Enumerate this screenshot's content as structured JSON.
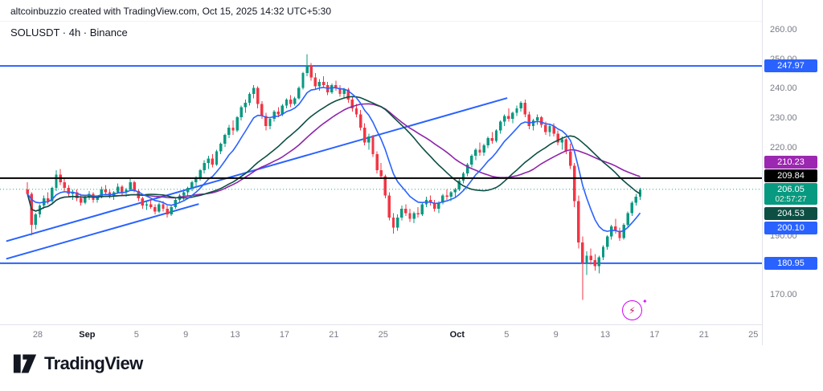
{
  "attribution": {
    "text": "altcoinbuzzio created with TradingView.com, Oct 15, 2025 14:32 UTC+5:30"
  },
  "legend": {
    "text": "SOLUSDT · 4h · Binance"
  },
  "logo": {
    "brand": "TradingView"
  },
  "flash_button": {
    "glyph": "⚡",
    "spark": "✦"
  },
  "price_axis": {
    "ticks": [
      {
        "label": "260.00",
        "value": 260,
        "visible": true
      },
      {
        "label": "250.00",
        "value": 250,
        "visible": true
      },
      {
        "label": "240.00",
        "value": 240,
        "visible": true
      },
      {
        "label": "230.00",
        "value": 230,
        "visible": true
      },
      {
        "label": "220.00",
        "value": 220,
        "visible": true
      },
      {
        "label": "210.00",
        "value": 210,
        "visible": false
      },
      {
        "label": "200.00",
        "value": 200,
        "visible": false
      },
      {
        "label": "190.00",
        "value": 190,
        "visible": true
      },
      {
        "label": "180.00",
        "value": 180,
        "visible": false
      },
      {
        "label": "170.00",
        "value": 170,
        "visible": true
      }
    ]
  },
  "time_axis": {
    "labels": [
      {
        "label": "28",
        "day": 1,
        "month": false
      },
      {
        "label": "Sep",
        "day": 5,
        "month": true
      },
      {
        "label": "5",
        "day": 9,
        "month": false
      },
      {
        "label": "9",
        "day": 13,
        "month": false
      },
      {
        "label": "13",
        "day": 17,
        "month": false
      },
      {
        "label": "17",
        "day": 21,
        "month": false
      },
      {
        "label": "21",
        "day": 25,
        "month": false
      },
      {
        "label": "25",
        "day": 29,
        "month": false
      },
      {
        "label": "Oct",
        "day": 35,
        "month": true
      },
      {
        "label": "5",
        "day": 39,
        "month": false
      },
      {
        "label": "9",
        "day": 43,
        "month": false
      },
      {
        "label": "13",
        "day": 47,
        "month": false
      },
      {
        "label": "17",
        "day": 51,
        "month": false
      },
      {
        "label": "21",
        "day": 55,
        "month": false
      },
      {
        "label": "25",
        "day": 59,
        "month": false
      }
    ]
  },
  "badges": [
    {
      "label": "247.97",
      "price": 247.97,
      "color": "#2962FF",
      "shift": 0
    },
    {
      "label": "210.23",
      "price": 210.23,
      "color": "#9C27B0",
      "shift": -18
    },
    {
      "label": "209.84",
      "price": 209.84,
      "color": "#000000",
      "shift": -3
    },
    {
      "label": "206.05",
      "price": 206.05,
      "color": "#089981",
      "shift": 6,
      "sub": "02:57:27"
    },
    {
      "label": "204.53",
      "price": 204.53,
      "color": "#0D4F43",
      "shift": 25
    },
    {
      "label": "200.10",
      "price": 200.1,
      "color": "#2962FF",
      "shift": 26
    },
    {
      "label": "180.95",
      "price": 180.95,
      "color": "#2962FF",
      "shift": 0
    }
  ],
  "chart_data": {
    "type": "candlestick",
    "title": "SOLUSDT · 4h · Binance",
    "symbol": "SOLUSDT",
    "interval": "4h",
    "exchange": "Binance",
    "date_range": "Aug 27 – Oct 25, 2025 (last candle Oct 15)",
    "y_range": [
      165,
      262
    ],
    "last_price": 206.05,
    "countdown": "02:57:27",
    "colors": {
      "up": "#089981",
      "down": "#F23645"
    },
    "candles_per_day": 3,
    "candles": [
      [
        206,
        208.5,
        204,
        204.5
      ],
      [
        204.5,
        205,
        190.5,
        194
      ],
      [
        194,
        198,
        192.5,
        197.5
      ],
      [
        197.5,
        201,
        196.5,
        200.5
      ],
      [
        200.5,
        204,
        199.5,
        203
      ],
      [
        203,
        205,
        201,
        202
      ],
      [
        202,
        207,
        201.5,
        206.5
      ],
      [
        206.5,
        212.5,
        205.5,
        211
      ],
      [
        211,
        213,
        207.5,
        208.5
      ],
      [
        208.5,
        210,
        205.5,
        206.5
      ],
      [
        206.5,
        207.5,
        203.5,
        204.5
      ],
      [
        204.5,
        206,
        202.5,
        205
      ],
      [
        205,
        206,
        202,
        203
      ],
      [
        203,
        204.5,
        200.5,
        201.5
      ],
      [
        201.5,
        204,
        201,
        203.5
      ],
      [
        203.5,
        205.5,
        202.5,
        204.5
      ],
      [
        204.5,
        205,
        201.5,
        202.5
      ],
      [
        202.5,
        204,
        201.5,
        203.5
      ],
      [
        203.5,
        207,
        203,
        206
      ],
      [
        206,
        207.5,
        204.5,
        205
      ],
      [
        205,
        206,
        203,
        204
      ],
      [
        204,
        205.5,
        202.5,
        205
      ],
      [
        205,
        208,
        204.5,
        207
      ],
      [
        207,
        207.5,
        204,
        205
      ],
      [
        205,
        206.5,
        203.5,
        206
      ],
      [
        206,
        209.5,
        205.5,
        208.5
      ],
      [
        208.5,
        209,
        205,
        205.5
      ],
      [
        205.5,
        206,
        202,
        203
      ],
      [
        203,
        203.5,
        199.5,
        200.5
      ],
      [
        200.5,
        202,
        199,
        201
      ],
      [
        201,
        202.5,
        199.5,
        200
      ],
      [
        200,
        201,
        197.5,
        198.5
      ],
      [
        198.5,
        201.5,
        198,
        201
      ],
      [
        201,
        202,
        198.5,
        199.5
      ],
      [
        199.5,
        200.5,
        196.5,
        197.5
      ],
      [
        197.5,
        200.5,
        197,
        200
      ],
      [
        200,
        203,
        199.5,
        202.5
      ],
      [
        202.5,
        204.5,
        201.5,
        204
      ],
      [
        204,
        205.5,
        202.5,
        205
      ],
      [
        205,
        207,
        203.5,
        206.5
      ],
      [
        206.5,
        209,
        205.5,
        208.5
      ],
      [
        208.5,
        210.5,
        207,
        210
      ],
      [
        210,
        213,
        209,
        212.5
      ],
      [
        212.5,
        216,
        211.5,
        215
      ],
      [
        215,
        217.5,
        213,
        216.5
      ],
      [
        216.5,
        218,
        213.5,
        214.5
      ],
      [
        214.5,
        219.5,
        214,
        219
      ],
      [
        219,
        222,
        218,
        221.5
      ],
      [
        221.5,
        225,
        220.5,
        224.5
      ],
      [
        224.5,
        228,
        223.5,
        227
      ],
      [
        227,
        229.5,
        224.5,
        226
      ],
      [
        226,
        231,
        225.5,
        230.5
      ],
      [
        230.5,
        234.5,
        229.5,
        234
      ],
      [
        234,
        236.5,
        232,
        235.5
      ],
      [
        235.5,
        239,
        234.5,
        238.5
      ],
      [
        238.5,
        241.5,
        237,
        240.5
      ],
      [
        240.5,
        241,
        233.5,
        235
      ],
      [
        235,
        236,
        230,
        231
      ],
      [
        231,
        232,
        226,
        227.5
      ],
      [
        227.5,
        230.5,
        226.5,
        230
      ],
      [
        230,
        233,
        229,
        232.5
      ],
      [
        232.5,
        234,
        230.5,
        231.5
      ],
      [
        231.5,
        235,
        231,
        234.5
      ],
      [
        234.5,
        237,
        233.5,
        236.5
      ],
      [
        236.5,
        238,
        234,
        235
      ],
      [
        235,
        237.5,
        234.5,
        237
      ],
      [
        237,
        241,
        236.5,
        240.5
      ],
      [
        240.5,
        246,
        240,
        245.5
      ],
      [
        245.5,
        252,
        244.5,
        248
      ],
      [
        248,
        249,
        243,
        244
      ],
      [
        244,
        245.5,
        240,
        241
      ],
      [
        241,
        243.5,
        239.5,
        242.5
      ],
      [
        242.5,
        244.5,
        240.5,
        241.5
      ],
      [
        241.5,
        242.5,
        238,
        239
      ],
      [
        239,
        242,
        238.5,
        241.5
      ],
      [
        241.5,
        243,
        239.5,
        240.5
      ],
      [
        240.5,
        241.5,
        237.5,
        238.5
      ],
      [
        238.5,
        240.5,
        237,
        240
      ],
      [
        240,
        240.5,
        235.5,
        236.5
      ],
      [
        236.5,
        237.5,
        232.5,
        233.5
      ],
      [
        233.5,
        235,
        230.5,
        231.5
      ],
      [
        231.5,
        233,
        226,
        227
      ],
      [
        227,
        228.5,
        221,
        222
      ],
      [
        222,
        225,
        219.5,
        224
      ],
      [
        224,
        224.5,
        217,
        218
      ],
      [
        218,
        219,
        211.5,
        212.5
      ],
      [
        212.5,
        215,
        209.5,
        210.5
      ],
      [
        210.5,
        211,
        203,
        204
      ],
      [
        204,
        205,
        195.5,
        196.5
      ],
      [
        196.5,
        198,
        191,
        193
      ],
      [
        193,
        197.5,
        192,
        196.5
      ],
      [
        196.5,
        200.5,
        195.5,
        199.5
      ],
      [
        199.5,
        201,
        197,
        198
      ],
      [
        198,
        199.5,
        195,
        196
      ],
      [
        196,
        198.5,
        194.5,
        198
      ],
      [
        198,
        200,
        196.5,
        197.5
      ],
      [
        197.5,
        201.5,
        197,
        201
      ],
      [
        201,
        203.5,
        200,
        202.5
      ],
      [
        202.5,
        204,
        200.5,
        201.5
      ],
      [
        201.5,
        202.5,
        198.5,
        199.5
      ],
      [
        199.5,
        202,
        198,
        201.5
      ],
      [
        201.5,
        204.5,
        201,
        204
      ],
      [
        204,
        206,
        202.5,
        203.5
      ],
      [
        203.5,
        205.5,
        202,
        205
      ],
      [
        205,
        206.5,
        203.5,
        206
      ],
      [
        206,
        209.5,
        205.5,
        209
      ],
      [
        209,
        212,
        208,
        211.5
      ],
      [
        211.5,
        215,
        210.5,
        214.5
      ],
      [
        214.5,
        218,
        213.5,
        217.5
      ],
      [
        217.5,
        220,
        216,
        219.5
      ],
      [
        219.5,
        222,
        217.5,
        218.5
      ],
      [
        218.5,
        221.5,
        217.5,
        221
      ],
      [
        221,
        224,
        220,
        223.5
      ],
      [
        223.5,
        225.5,
        221.5,
        222.5
      ],
      [
        222.5,
        226.5,
        222,
        226
      ],
      [
        226,
        229.5,
        225,
        229
      ],
      [
        229,
        231.5,
        227.5,
        231
      ],
      [
        231,
        233.5,
        229,
        230
      ],
      [
        230,
        232.5,
        228.5,
        232
      ],
      [
        232,
        234.5,
        231,
        233.5
      ],
      [
        233.5,
        236,
        232.5,
        235.5
      ],
      [
        235.5,
        236.5,
        230.5,
        231.5
      ],
      [
        231.5,
        232.5,
        226.5,
        227.5
      ],
      [
        227.5,
        230,
        226,
        229.5
      ],
      [
        229.5,
        231.5,
        228,
        230.5
      ],
      [
        230.5,
        231,
        227,
        228
      ],
      [
        228,
        229,
        224.5,
        225.5
      ],
      [
        225.5,
        228,
        224,
        227.5
      ],
      [
        227.5,
        228.5,
        224,
        225
      ],
      [
        225,
        226,
        221,
        222
      ],
      [
        222,
        224,
        219.5,
        223
      ],
      [
        223,
        223.5,
        218,
        219
      ],
      [
        219,
        221.5,
        213,
        214
      ],
      [
        214,
        215,
        200,
        202
      ],
      [
        202,
        204,
        186,
        188
      ],
      [
        188,
        190,
        168.5,
        181
      ],
      [
        181,
        185,
        177,
        183.5
      ],
      [
        183.5,
        186,
        180.5,
        182
      ],
      [
        182,
        184,
        178.5,
        180
      ],
      [
        180,
        183.5,
        177.5,
        183
      ],
      [
        183,
        187,
        182,
        186.5
      ],
      [
        186.5,
        190.5,
        185.5,
        190
      ],
      [
        190,
        194,
        189,
        193.5
      ],
      [
        193.5,
        196,
        191,
        192
      ],
      [
        192,
        193,
        188.5,
        189.5
      ],
      [
        189.5,
        194.5,
        189,
        194
      ],
      [
        194,
        198.5,
        193.5,
        198
      ],
      [
        198,
        202,
        197,
        201.5
      ],
      [
        201.5,
        204.5,
        200.5,
        203.5
      ],
      [
        203.5,
        206.6,
        202.5,
        206.05
      ]
    ],
    "moving_averages": [
      {
        "name": "ema-fast",
        "type": "ema",
        "period": 10,
        "color": "#2962FF",
        "last_value": 200.1
      },
      {
        "name": "sma-mid",
        "type": "sma",
        "period": 28,
        "color": "#0D4F43",
        "last_value": 204.53
      },
      {
        "name": "sma-slow",
        "type": "sma",
        "period": 36,
        "color": "#8E24AA",
        "last_value": 210.23
      }
    ],
    "horizontal_lines": [
      {
        "price": 247.97,
        "color": "#2962FF",
        "style": "solid",
        "width": 2
      },
      {
        "price": 209.84,
        "color": "#000000",
        "style": "solid",
        "width": 2
      },
      {
        "price": 180.95,
        "color": "#2962FF",
        "style": "solid",
        "width": 2
      },
      {
        "price": 206.05,
        "color": "#089981",
        "style": "dotted",
        "width": 1
      }
    ],
    "trendlines": [
      {
        "from_day": -1.5,
        "from_price": 188.5,
        "to_day": 39,
        "to_price": 237,
        "color": "#2962FF",
        "width": 2
      },
      {
        "from_day": -1.5,
        "from_price": 182.5,
        "to_day": 14,
        "to_price": 201,
        "color": "#2962FF",
        "width": 2
      }
    ]
  }
}
